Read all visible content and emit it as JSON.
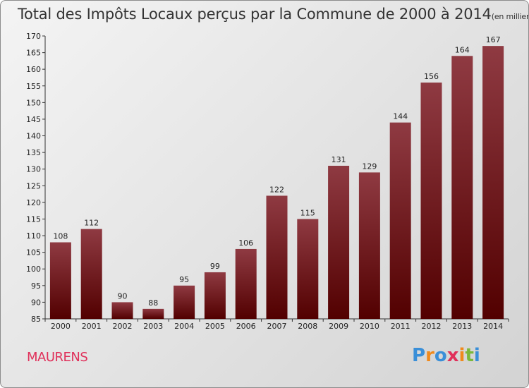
{
  "header": {
    "title": "Total des Impôts Locaux perçus par la Commune de 2000 à 2014",
    "unit": "(en milliers d'€)"
  },
  "footer": {
    "commune": "MAURENS",
    "brand": [
      "P",
      "r",
      "o",
      "x",
      "i",
      "t",
      "i"
    ],
    "brand_colors": [
      "#3a8fd8",
      "#f08a1c",
      "#3a8fd8",
      "#e0305a",
      "#f08a1c",
      "#7ab83a",
      "#3a8fd8"
    ]
  },
  "colors": {
    "bar_top": "#8f3a42",
    "bar_bottom": "#520000",
    "axis": "#333333",
    "grid": "#bbbbbb"
  },
  "chart_data": {
    "type": "bar",
    "title": "Total des Impôts Locaux perçus par la Commune de 2000 à 2014",
    "xlabel": "",
    "ylabel": "en milliers d'€",
    "categories": [
      "2000",
      "2001",
      "2002",
      "2003",
      "2004",
      "2005",
      "2006",
      "2007",
      "2008",
      "2009",
      "2010",
      "2011",
      "2012",
      "2013",
      "2014"
    ],
    "values": [
      108,
      112,
      90,
      88,
      95,
      99,
      106,
      122,
      115,
      131,
      129,
      144,
      156,
      164,
      167
    ],
    "ylim": [
      85,
      170
    ],
    "yticks": [
      85,
      90,
      95,
      100,
      105,
      110,
      115,
      120,
      125,
      130,
      135,
      140,
      145,
      150,
      155,
      160,
      165,
      170
    ],
    "grid": false,
    "legend": "none"
  }
}
